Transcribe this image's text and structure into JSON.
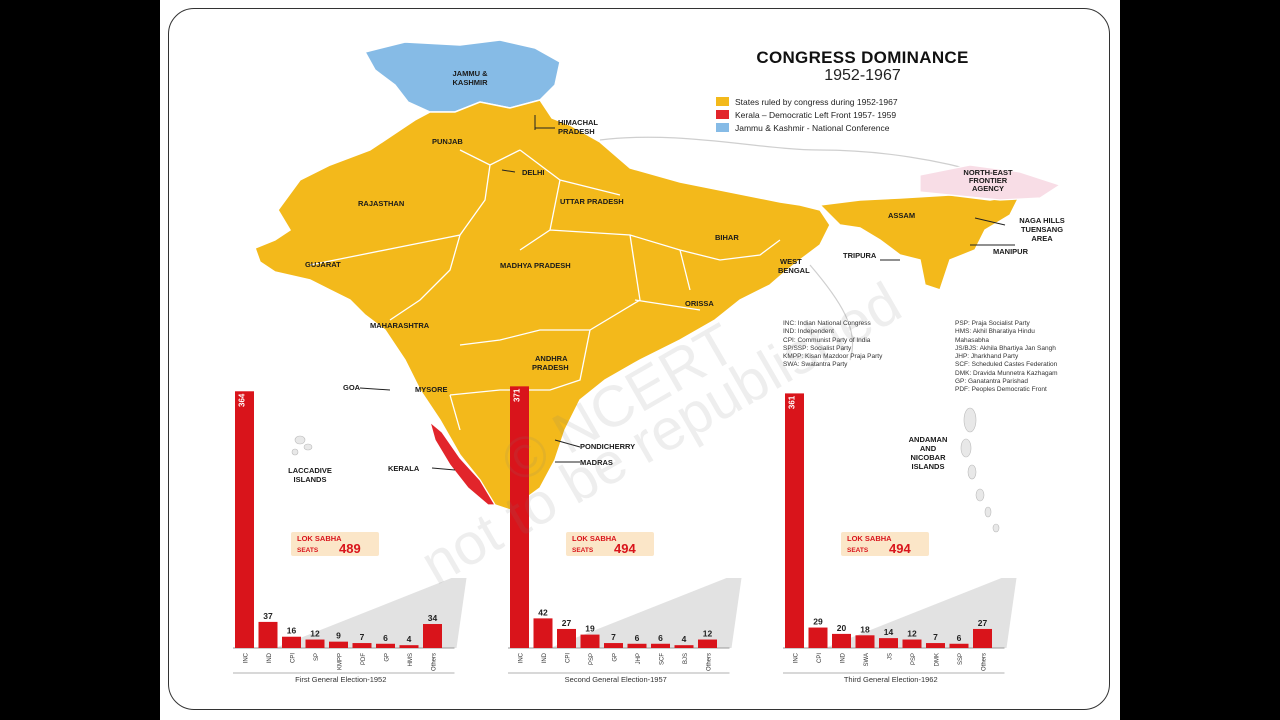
{
  "title": "CONGRESS DOMINANCE",
  "subtitle": "1952-1967",
  "legend": [
    {
      "label": "States ruled by congress during 1952-1967",
      "color": "#f3b91b"
    },
    {
      "label": "Kerala – Democratic Left Front 1957- 1959",
      "color": "#e2252b"
    },
    {
      "label": "Jammu & Kashmir - National Conference",
      "color": "#86bbe6"
    }
  ],
  "colors": {
    "congress": "#f3b91b",
    "left": "#e2252b",
    "nc": "#86bbe6",
    "nefa": "#f8dde6",
    "bar": "#d9141b"
  },
  "map_labels": {
    "jk": [
      "JAMMU &",
      "KASHMIR"
    ],
    "hp": [
      "HIMACHAL",
      "PRADESH"
    ],
    "punjab": "PUNJAB",
    "delhi": "DELHI",
    "rajasthan": "RAJASTHAN",
    "up": "UTTAR PRADESH",
    "bihar": "BIHAR",
    "gujarat": "GUJARAT",
    "mp": "MADHYA PRADESH",
    "wb": [
      "WEST",
      "BENGAL"
    ],
    "orissa": "ORISSA",
    "maharashtra": "MAHARASHTRA",
    "ap": [
      "ANDHRA",
      "PRADESH"
    ],
    "goa": "GOA",
    "mysore": "MYSORE",
    "pondicherry": "PONDICHERRY",
    "madras": "MADRAS",
    "kerala": "KERALA",
    "laccadive": [
      "LACCADIVE",
      "ISLANDS"
    ],
    "andaman": [
      "ANDAMAN",
      "AND",
      "NICOBAR",
      "ISLANDS"
    ],
    "nefa": [
      "NORTH-EAST",
      "FRONTIER",
      "AGENCY"
    ],
    "assam": "ASSAM",
    "naga": [
      "NAGA HILLS",
      "TUENSANG",
      "AREA"
    ],
    "tripura": "TRIPURA",
    "manipur": "MANIPUR"
  },
  "abbreviations_left": [
    "INC: Indian National Congress",
    "IND: Independent",
    "CPI: Communist Party of India",
    "SP/SSP: Socialist Party",
    "KMPP: Kisan Mazdoor Praja Party",
    "SWA: Swatantra Party"
  ],
  "abbreviations_right": [
    "PSP: Praja Socialist Party",
    "HMS: Akhil Bharatiya Hindu",
    "Mahasabha",
    "JS/BJS: Akhila Bhartiya Jan Sangh",
    "JHP: Jharkhand Party",
    "SCF: Scheduled Castes Federation",
    "DMK: Dravida Munnetra Kazhagam",
    "GP: Ganatantra Parishad",
    "PDF: Peoples Democratic Front"
  ],
  "watermark": [
    "© NCERT",
    "not to be republished"
  ],
  "chart_data": [
    {
      "type": "bar",
      "title": "First General Election-1952",
      "badge_line1": "LOK SABHA",
      "badge_line2": "SEATS",
      "total": "489",
      "categories": [
        "INC",
        "IND",
        "CPI",
        "SP",
        "KMPP",
        "PDF",
        "GP",
        "HMS",
        "Others"
      ],
      "values": [
        364,
        37,
        16,
        12,
        9,
        7,
        6,
        4,
        34
      ],
      "labels": [
        "364",
        "37",
        "16",
        "12",
        "9",
        "7",
        "6",
        "4",
        "34"
      ]
    },
    {
      "type": "bar",
      "title": "Second General Election-1957",
      "badge_line1": "LOK SABHA",
      "badge_line2": "SEATS",
      "total": "494",
      "categories": [
        "INC",
        "IND",
        "CPI",
        "PSP",
        "GP",
        "JHP",
        "SCF",
        "BJS",
        "Others"
      ],
      "values": [
        371,
        42,
        27,
        19,
        7,
        6,
        6,
        4,
        12
      ],
      "labels": [
        "371",
        "42",
        "27",
        "19",
        "7",
        "6",
        "6",
        "4",
        "12"
      ]
    },
    {
      "type": "bar",
      "title": "Third General Election-1962",
      "badge_line1": "LOK SABHA",
      "badge_line2": "SEATS",
      "total": "494",
      "categories": [
        "INC",
        "CPI",
        "IND",
        "SWA",
        "JS",
        "PSP",
        "DMK",
        "SSP",
        "Others"
      ],
      "values": [
        361,
        29,
        20,
        18,
        14,
        12,
        7,
        6,
        27
      ],
      "labels": [
        "361",
        "29",
        "20",
        "18",
        "14",
        "12",
        "7",
        "6",
        "27"
      ]
    }
  ]
}
